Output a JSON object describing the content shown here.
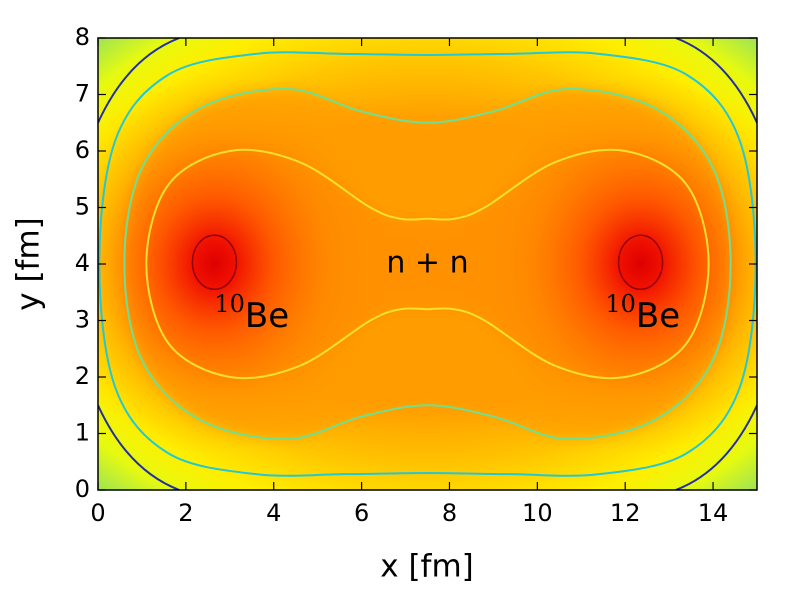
{
  "chart_data": {
    "type": "contour",
    "xlabel": "x [fm]",
    "ylabel": "y [fm]",
    "xlim": [
      0,
      15
    ],
    "ylim": [
      0,
      8
    ],
    "xticks": [
      0,
      2,
      4,
      6,
      8,
      10,
      12,
      14
    ],
    "yticks": [
      0,
      1,
      2,
      3,
      4,
      5,
      6,
      7,
      8
    ],
    "annotations": [
      "n + n",
      {
        "sup": "10",
        "text": "Be"
      },
      {
        "sup": "10",
        "text": "Be"
      }
    ]
  }
}
